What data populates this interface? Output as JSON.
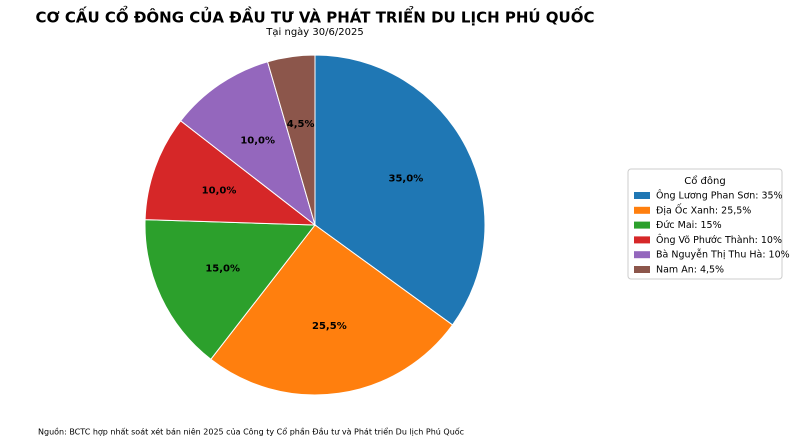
{
  "chart_data": {
    "type": "pie",
    "title": "CƠ CẤU CỔ ĐÔNG CỦA ĐẦU TƯ VÀ PHÁT TRIỂN DU LỊCH PHÚ QUỐC",
    "subtitle": "Tại ngày 30/6/2025",
    "legend_title": "Cổ đông",
    "categories": [
      "Ông Lương Phan Sơn: 35%",
      "Địa Ốc Xanh: 25,5%",
      "Đức Mai: 15%",
      "Ông Võ Phước Thành: 10%",
      "Bà Nguyễn Thị Thu Hà: 10%",
      "Nam An: 4,5%"
    ],
    "values": [
      35,
      25.5,
      15,
      10,
      10,
      4.5
    ],
    "value_labels": [
      "35,0%",
      "25,5%",
      "15,0%",
      "10,0%",
      "10,0%",
      "4,5%"
    ],
    "colors": [
      "#1f77b4",
      "#ff7f0e",
      "#2ca02c",
      "#d62728",
      "#9467bd",
      "#8c564b"
    ],
    "legend": "right",
    "source": "Nguồn: BCTC hợp nhất soát xét bán niên 2025 của Công ty Cổ phần Đầu tư và Phát triển Du lịch Phú Quốc"
  }
}
